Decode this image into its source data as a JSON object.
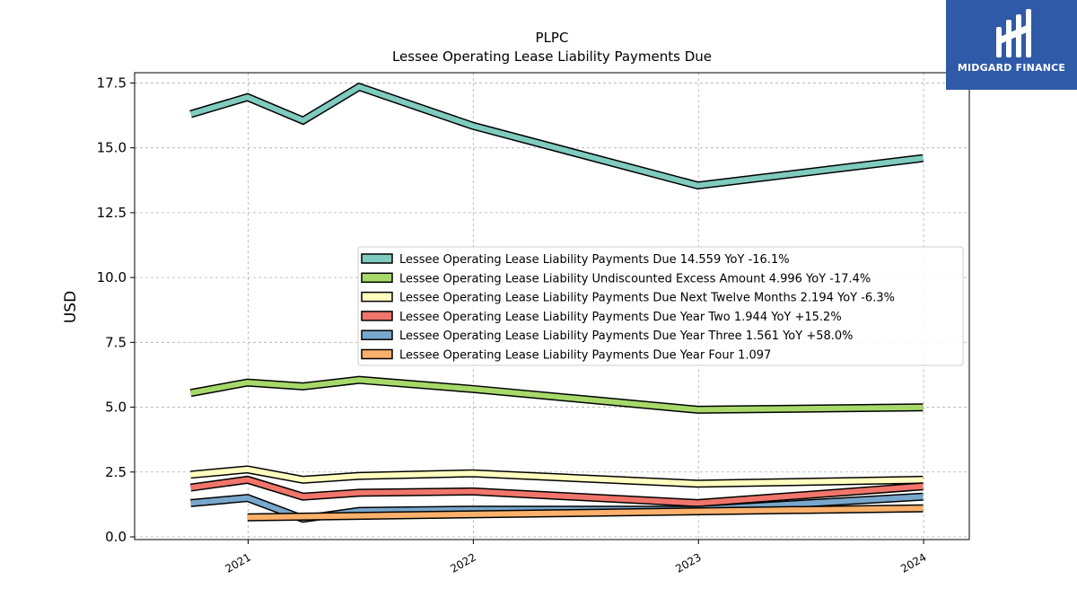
{
  "chart_data": {
    "type": "line",
    "title": "PLPC",
    "subtitle": "Lessee Operating Lease Liability Payments Due",
    "xlabel": "",
    "ylabel": "USD",
    "ylim": [
      0,
      18
    ],
    "xlim": [
      "2020-07-01",
      "2024-03-15"
    ],
    "grid": true,
    "legend_position": "center-right",
    "x_ticks": [
      "2021",
      "2022",
      "2023",
      "2024"
    ],
    "y_ticks": [
      "0.0",
      "2.5",
      "5.0",
      "7.5",
      "10.0",
      "12.5",
      "15.0",
      "17.5"
    ],
    "series": [
      {
        "name": "Lessee Operating Lease Liability Payments Due",
        "legend_label": "Lessee Operating Lease Liability Payments Due  14.559 YoY -16.1%",
        "color": "#7fcbbf",
        "points": [
          [
            "2020-09-30",
            16.3
          ],
          [
            "2020-12-31",
            16.95
          ],
          [
            "2021-03-31",
            16.05
          ],
          [
            "2021-06-30",
            17.35
          ],
          [
            "2021-12-31",
            15.85
          ],
          [
            "2022-12-31",
            13.55
          ],
          [
            "2023-12-31",
            14.6
          ]
        ]
      },
      {
        "name": "Lessee Operating Lease Liability Undiscounted Excess Amount",
        "legend_label": "Lessee Operating Lease Liability Undiscounted Excess Amount  4.996 YoY -17.4%",
        "color": "#a6d96a",
        "points": [
          [
            "2020-09-30",
            5.55
          ],
          [
            "2020-12-31",
            5.95
          ],
          [
            "2021-03-31",
            5.8
          ],
          [
            "2021-06-30",
            6.05
          ],
          [
            "2021-12-31",
            5.7
          ],
          [
            "2022-12-31",
            4.9
          ],
          [
            "2023-12-31",
            4.99
          ]
        ]
      },
      {
        "name": "Lessee Operating Lease Liability Payments Due Next Twelve Months",
        "legend_label": "Lessee Operating Lease Liability Payments Due Next Twelve Months  2.194 YoY -6.3%",
        "color": "#ffffbf",
        "points": [
          [
            "2020-09-30",
            2.4
          ],
          [
            "2020-12-31",
            2.6
          ],
          [
            "2021-03-31",
            2.2
          ],
          [
            "2021-06-30",
            2.35
          ],
          [
            "2021-12-31",
            2.45
          ],
          [
            "2022-12-31",
            2.05
          ],
          [
            "2023-12-31",
            2.2
          ]
        ]
      },
      {
        "name": "Lessee Operating Lease Liability Payments Due Year Two",
        "legend_label": "Lessee Operating Lease Liability Payments Due Year Two  1.944 YoY +15.2%",
        "color": "#f1756b",
        "points": [
          [
            "2020-09-30",
            1.9
          ],
          [
            "2020-12-31",
            2.2
          ],
          [
            "2021-03-31",
            1.55
          ],
          [
            "2021-06-30",
            1.7
          ],
          [
            "2021-12-31",
            1.75
          ],
          [
            "2022-12-31",
            1.3
          ],
          [
            "2023-12-31",
            1.95
          ]
        ]
      },
      {
        "name": "Lessee Operating Lease Liability Payments Due Year Three",
        "legend_label": "Lessee Operating Lease Liability Payments Due Year Three  1.561 YoY +58.0%",
        "color": "#79a7cc",
        "points": [
          [
            "2020-09-30",
            1.3
          ],
          [
            "2020-12-31",
            1.5
          ],
          [
            "2021-03-31",
            0.7
          ],
          [
            "2021-06-30",
            1.0
          ],
          [
            "2021-12-31",
            1.05
          ],
          [
            "2022-12-31",
            1.05
          ],
          [
            "2023-12-31",
            1.55
          ]
        ]
      },
      {
        "name": "Lessee Operating Lease Liability Payments Due Year Four",
        "legend_label": "Lessee Operating Lease Liability Payments Due Year Four  1.097",
        "color": "#fbb06b",
        "points": [
          [
            "2020-12-31",
            0.75
          ],
          [
            "2023-12-31",
            1.1
          ]
        ]
      }
    ]
  },
  "logo": {
    "text": "MIDGARD FINANCE",
    "background": "#2f5aa8"
  }
}
